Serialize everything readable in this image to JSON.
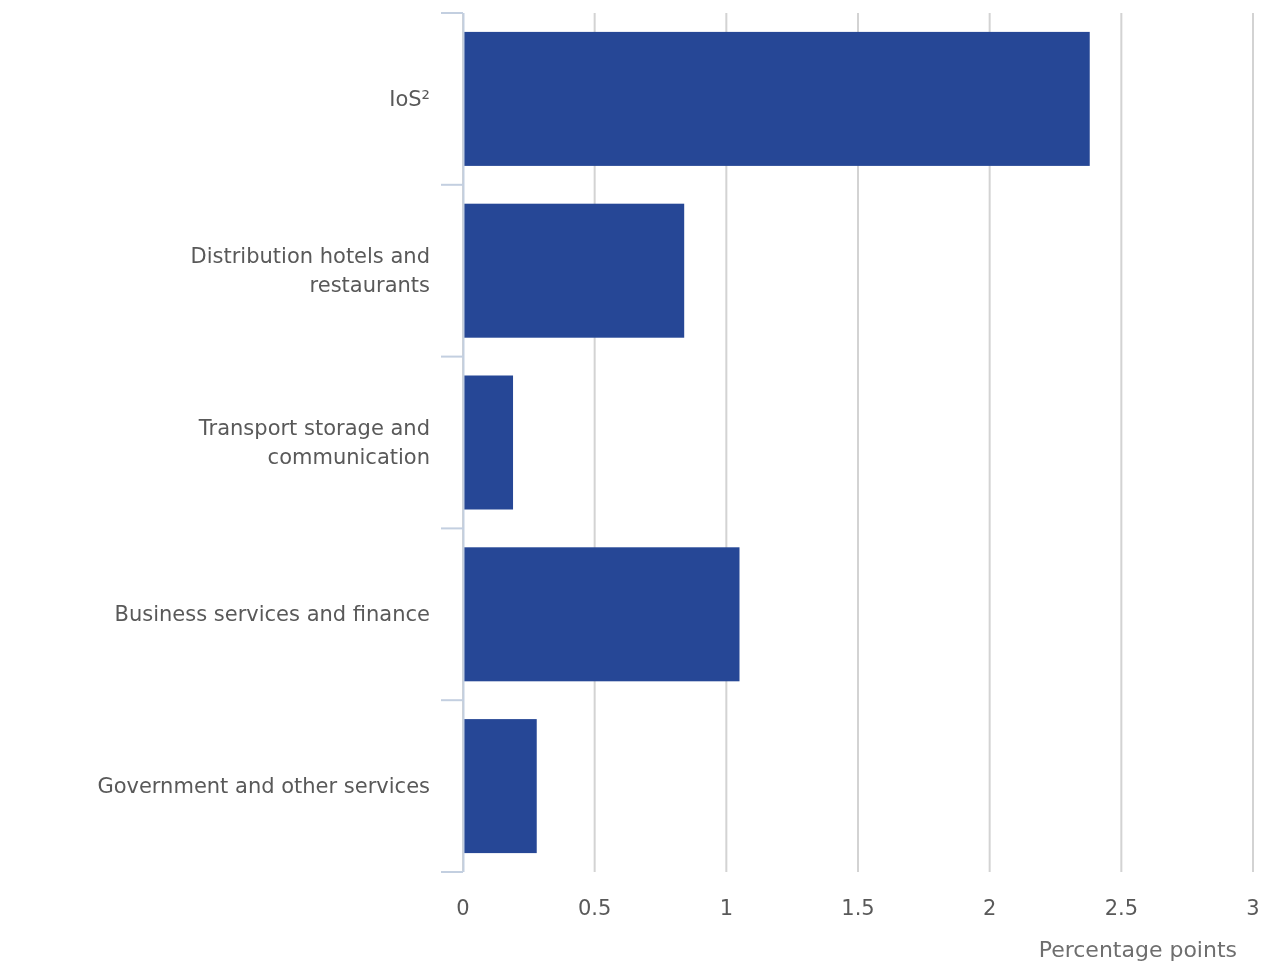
{
  "chart_data": {
    "type": "bar",
    "orientation": "horizontal",
    "categories": [
      "IoS²",
      "Distribution hotels and restaurants",
      "Transport storage and communication",
      "Business services and finance",
      "Government and other services"
    ],
    "values": [
      2.38,
      0.84,
      0.19,
      1.05,
      0.28
    ],
    "color": "#264796",
    "xlim": [
      0,
      3
    ],
    "xticks": [
      0,
      0.5,
      1,
      1.5,
      2,
      2.5,
      3
    ],
    "xlabel": "Percentage points",
    "grid": "x"
  }
}
